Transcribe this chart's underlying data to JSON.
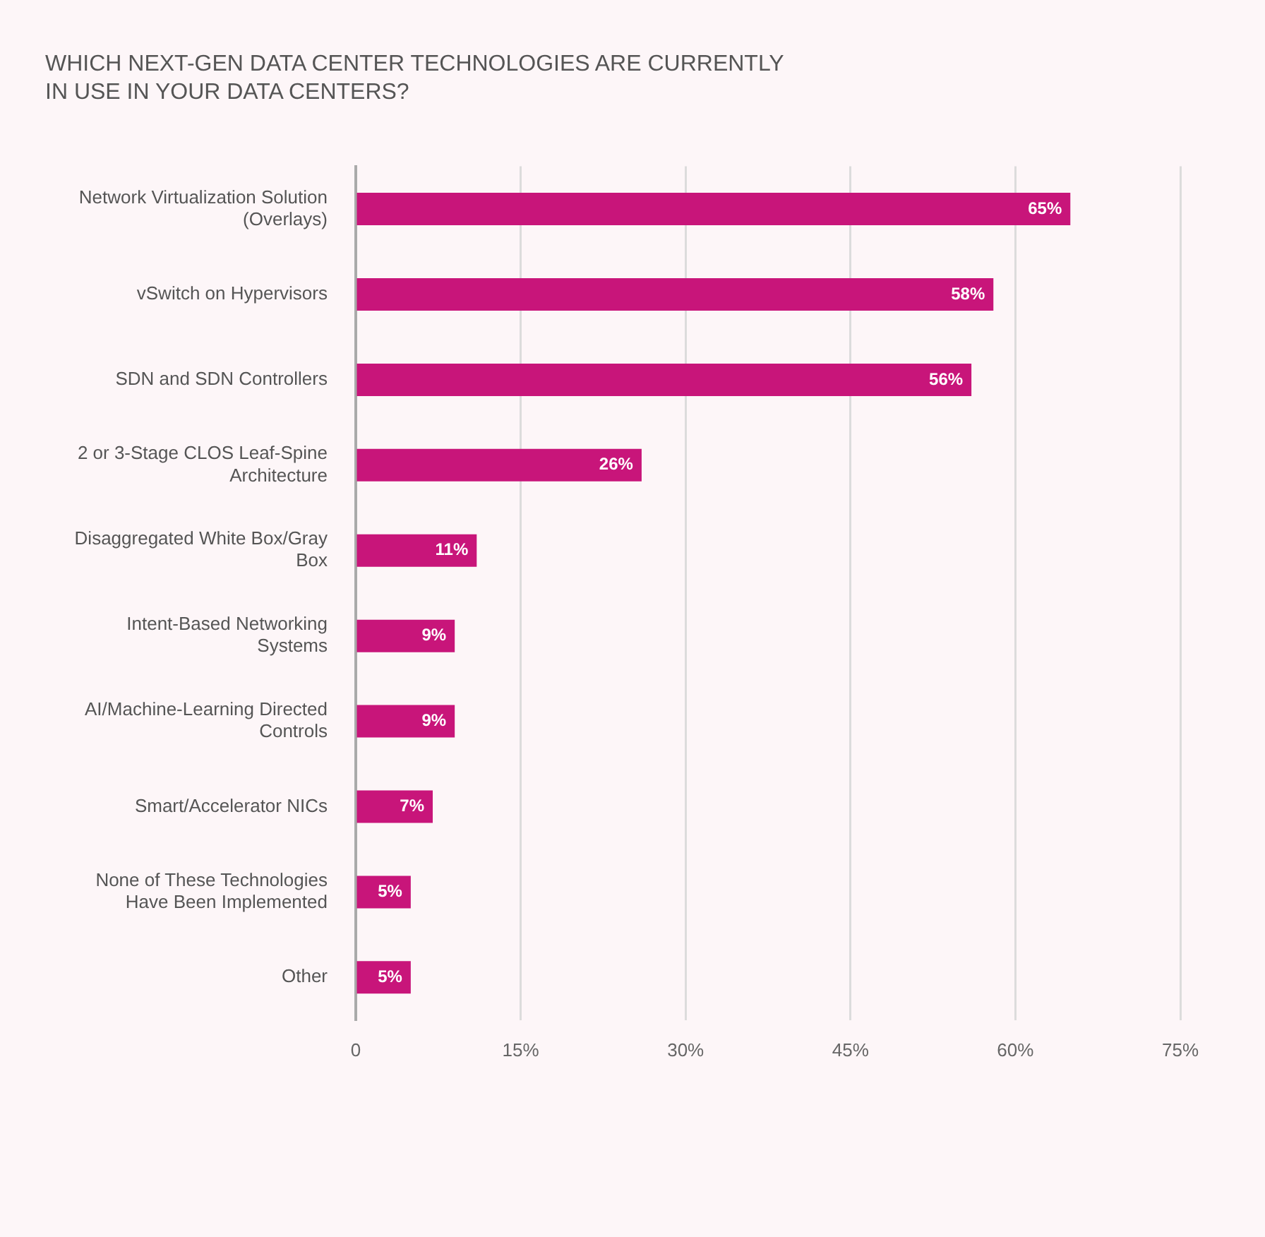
{
  "chart_data": {
    "type": "bar",
    "orientation": "horizontal",
    "title": "WHICH NEXT-GEN DATA CENTER TECHNOLOGIES ARE CURRENTLY IN USE IN YOUR DATA CENTERS?",
    "categories": [
      "Network Virtualization Solution (Overlays)",
      "vSwitch on Hypervisors",
      "SDN and SDN Controllers",
      "2 or 3-Stage CLOS Leaf-Spine Architecture",
      "Disaggregated White Box/Gray Box",
      "Intent-Based Networking Systems",
      "AI/Machine-Learning Directed Controls",
      "Smart/Accelerator NICs",
      "None of These Technologies Have Been Implemented",
      "Other"
    ],
    "values": [
      65,
      58,
      56,
      26,
      11,
      9,
      9,
      7,
      5,
      5
    ],
    "value_labels": [
      "65%",
      "58%",
      "56%",
      "26%",
      "11%",
      "9%",
      "9%",
      "7%",
      "5%",
      "5%"
    ],
    "color": "#c8157a",
    "xlim": [
      0,
      75
    ],
    "xticks": [
      0,
      {
        "value": 15,
        "label": "15%"
      },
      {
        "value": 30,
        "label": "30%"
      },
      {
        "value": 45,
        "label": "45%"
      },
      {
        "value": 60,
        "label": "60%"
      },
      {
        "value": 75,
        "label": "75%"
      }
    ],
    "grid": "x",
    "legend": false
  }
}
